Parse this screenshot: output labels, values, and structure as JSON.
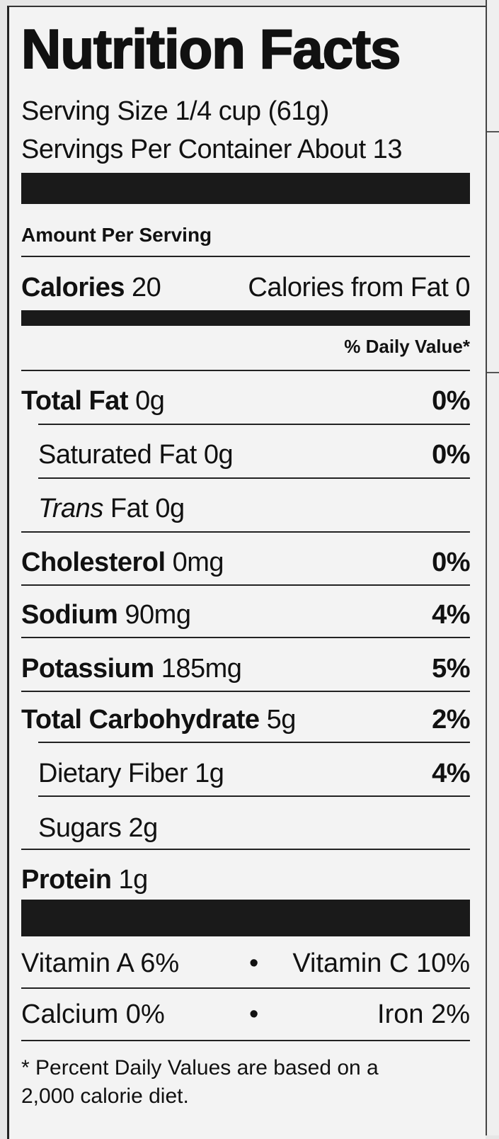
{
  "title": "Nutrition Facts",
  "serving_size": "Serving Size 1/4 cup (61g)",
  "servings_per_container": "Servings Per Container About 13",
  "amount_per_serving": "Amount Per Serving",
  "calories": {
    "label": "Calories",
    "value": "20",
    "from_fat": "Calories from Fat 0"
  },
  "daily_value_header": "% Daily Value*",
  "nutrients": [
    {
      "name": "Total Fat",
      "amount": "0g",
      "dv": "0%"
    },
    {
      "name": "Saturated Fat",
      "amount": "0g",
      "dv": "0%"
    },
    {
      "name_italic": "Trans",
      "name": "Fat",
      "amount": "0g",
      "dv": ""
    },
    {
      "name": "Cholesterol",
      "amount": "0mg",
      "dv": "0%"
    },
    {
      "name": "Sodium",
      "amount": "90mg",
      "dv": "4%"
    },
    {
      "name": "Potassium",
      "amount": "185mg",
      "dv": "5%"
    },
    {
      "name": "Total Carbohydrate",
      "amount": "5g",
      "dv": "2%"
    },
    {
      "name": "Dietary Fiber",
      "amount": "1g",
      "dv": "4%"
    },
    {
      "name": "Sugars",
      "amount": "2g",
      "dv": ""
    },
    {
      "name": "Protein",
      "amount": "1g",
      "dv": ""
    }
  ],
  "vitamins": [
    {
      "left": "Vitamin A 6%",
      "separator": "•",
      "right": "Vitamin C 10%"
    },
    {
      "left": "Calcium 0%",
      "separator": "•",
      "right": "Iron 2%"
    }
  ],
  "footnote": {
    "line1": "* Percent Daily Values are based on a",
    "line2": "2,000 calorie diet."
  }
}
